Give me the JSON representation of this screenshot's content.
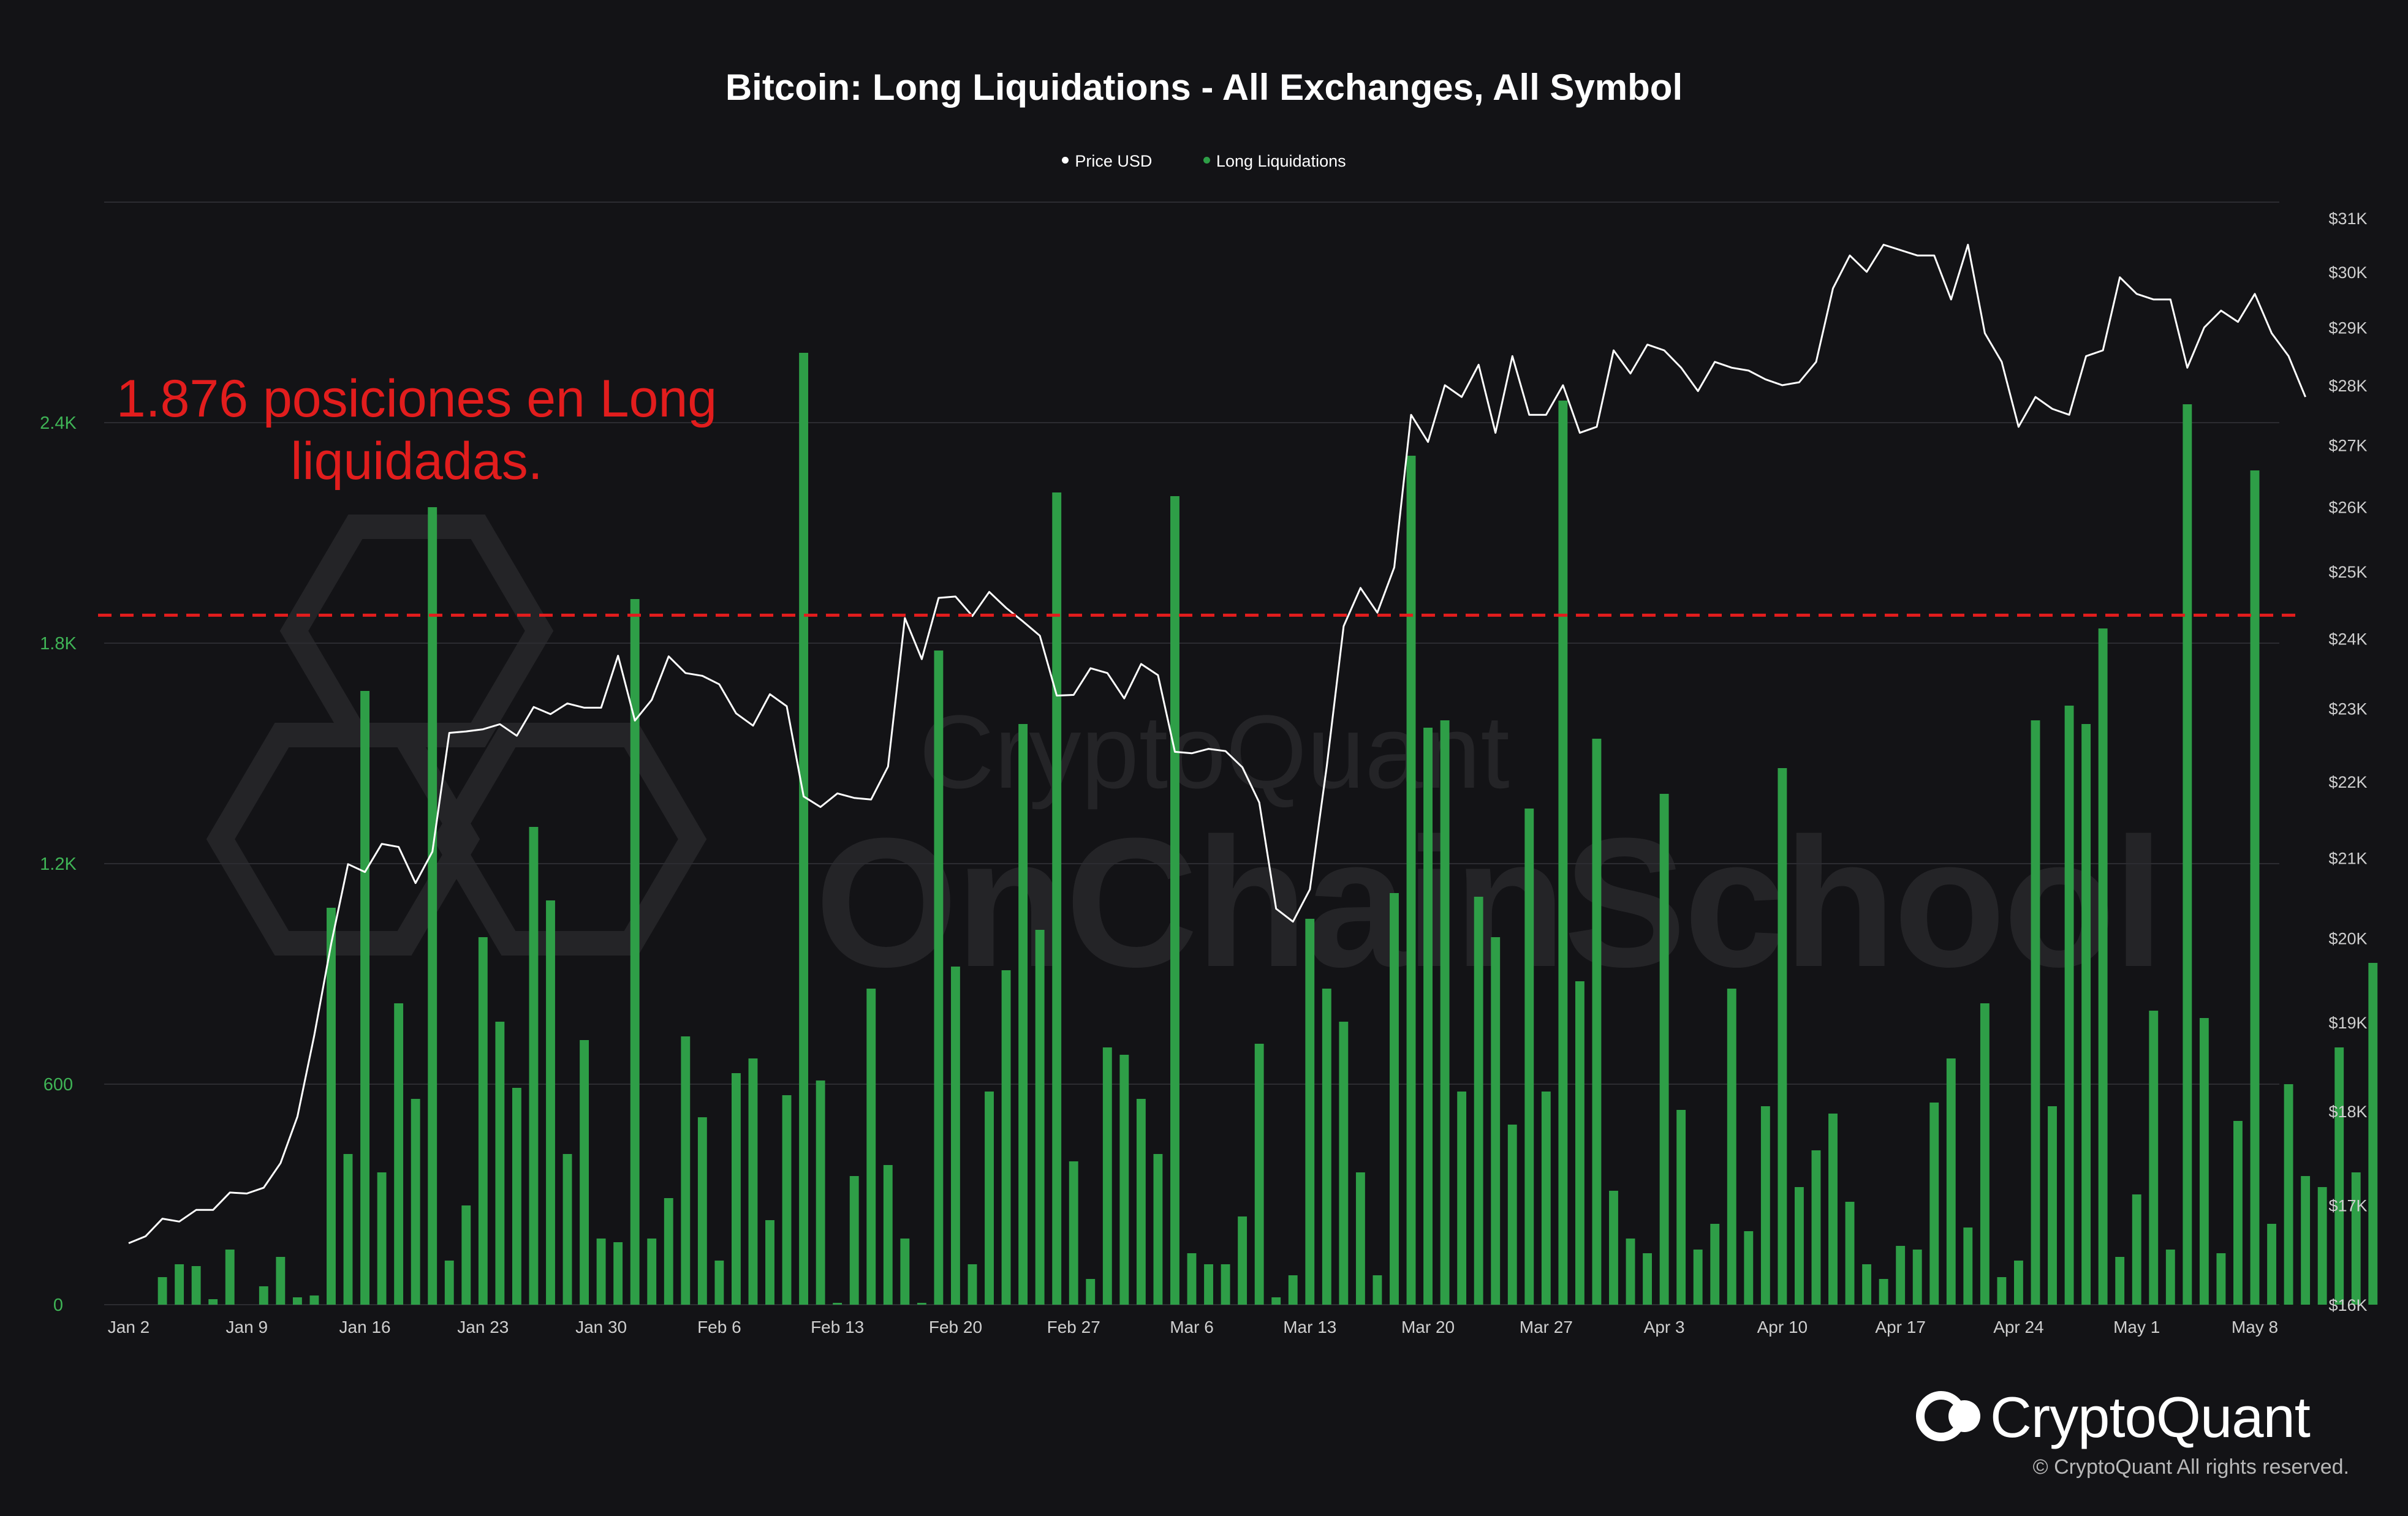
{
  "chart_data": {
    "type": "bar+line",
    "title": "Bitcoin: Long Liquidations - All Exchanges, All Symbol",
    "legend": {
      "placement": "top-center",
      "entries": [
        "Price USD",
        "Long Liquidations"
      ]
    },
    "x_ticks": [
      "Jan 2",
      "Jan 9",
      "Jan 16",
      "Jan 23",
      "Jan 30",
      "Feb 6",
      "Feb 13",
      "Feb 20",
      "Feb 27",
      "Mar 6",
      "Mar 13",
      "Mar 20",
      "Mar 27",
      "Apr 3",
      "Apr 10",
      "Apr 17",
      "Apr 24",
      "May 1",
      "May 8"
    ],
    "x_range": [
      "2023-01-02",
      "2023-05-08"
    ],
    "left_axis": {
      "series": "Long Liquidations",
      "ticks": [
        "0",
        "600",
        "1.2K",
        "1.8K",
        "2.4K"
      ],
      "tick_values": [
        0,
        600,
        1200,
        1800,
        2400
      ],
      "range": [
        0,
        3000
      ]
    },
    "right_axis": {
      "series": "Price USD",
      "ticks": [
        "$16K",
        "$17K",
        "$18K",
        "$19K",
        "$20K",
        "$21K",
        "$22K",
        "$23K",
        "$24K",
        "$25K",
        "$26K",
        "$27K",
        "$28K",
        "$29K",
        "$30K",
        "$31K"
      ],
      "range": [
        16000,
        31300
      ],
      "scale": "log"
    },
    "grid": "horizontal",
    "threshold_line": {
      "value": 1876,
      "style": "dashed"
    },
    "series": [
      {
        "name": "Long Liquidations",
        "axis": "left",
        "values": [
          0,
          75,
          110,
          105,
          15,
          150,
          0,
          50,
          130,
          20,
          25,
          1080,
          410,
          1670,
          360,
          820,
          560,
          2170,
          120,
          270,
          1000,
          770,
          590,
          1300,
          1100,
          410,
          720,
          180,
          170,
          1920,
          180,
          290,
          730,
          510,
          120,
          630,
          670,
          230,
          570,
          2590,
          610,
          5,
          350,
          860,
          380,
          180,
          5,
          1780,
          920,
          110,
          580,
          910,
          1580,
          1020,
          2210,
          390,
          70,
          700,
          680,
          560,
          410,
          2200,
          140,
          110,
          110,
          240,
          710,
          20,
          80,
          1050,
          860,
          770,
          360,
          80,
          1120,
          2310,
          1570,
          1590,
          580,
          1110,
          1000,
          490,
          1350,
          580,
          2460,
          880,
          1540,
          310,
          180,
          140,
          1390,
          530,
          150,
          220,
          860,
          200,
          540,
          1460,
          320,
          420,
          520,
          280,
          110,
          70,
          160,
          150,
          550,
          670,
          210,
          820,
          75,
          120,
          1590,
          540,
          1630,
          1580,
          1840,
          130,
          300,
          800,
          150,
          2450,
          780,
          140,
          500,
          2270,
          220,
          600,
          350,
          320,
          700,
          360,
          930
        ],
        "start": "2023-01-03"
      },
      {
        "name": "Price USD",
        "axis": "right",
        "values": [
          16610,
          16680,
          16860,
          16830,
          16950,
          16950,
          17130,
          17120,
          17180,
          17440,
          17940,
          18850,
          19930,
          20920,
          20820,
          21180,
          21140,
          20680,
          21080,
          22660,
          22680,
          22710,
          22780,
          22620,
          23020,
          22920,
          23070,
          23010,
          23010,
          23750,
          22830,
          23120,
          23740,
          23500,
          23460,
          23340,
          22930,
          22760,
          23200,
          23030,
          21800,
          21660,
          21840,
          21780,
          21760,
          22200,
          24300,
          23700,
          24600,
          24620,
          24330,
          24690,
          24450,
          24250,
          24040,
          23180,
          23190,
          23570,
          23500,
          23140,
          23630,
          23470,
          22400,
          22380,
          22440,
          22410,
          22190,
          21720,
          20360,
          20200,
          20600,
          22200,
          24180,
          24750,
          24380,
          25060,
          27500,
          27050,
          28000,
          27800,
          28350,
          27200,
          28500,
          27500,
          27500,
          28000,
          27200,
          27300,
          28600,
          28200,
          28700,
          28600,
          28300,
          27900,
          28400,
          28300,
          28250,
          28100,
          28000,
          28050,
          28400,
          29700,
          30300,
          30000,
          30500,
          30400,
          30300,
          30300,
          29500,
          30500,
          28900,
          28400,
          27300,
          27800,
          27600,
          27500,
          28500,
          28600,
          29900,
          29600,
          29500,
          29500,
          28300,
          29000,
          29300,
          29100,
          29600,
          28900,
          28500,
          27800
        ],
        "start": "2023-01-02"
      }
    ]
  },
  "annotation": {
    "line1": "1.876 posiciones en Long",
    "line2": "liquidadas."
  },
  "watermark": {
    "line1": "CryptoQuant",
    "line2": "OnChainSchool"
  },
  "branding": {
    "name": "CryptoQuant",
    "copyright": "© CryptoQuant All rights reserved."
  },
  "colors": {
    "background": "#131316",
    "bar": "#2e9e47",
    "price_line": "#ffffff",
    "threshold": "#e21d1d",
    "grid": "#2c2c31",
    "left_tick": "#3fb456",
    "right_tick": "#cfcfcf"
  }
}
